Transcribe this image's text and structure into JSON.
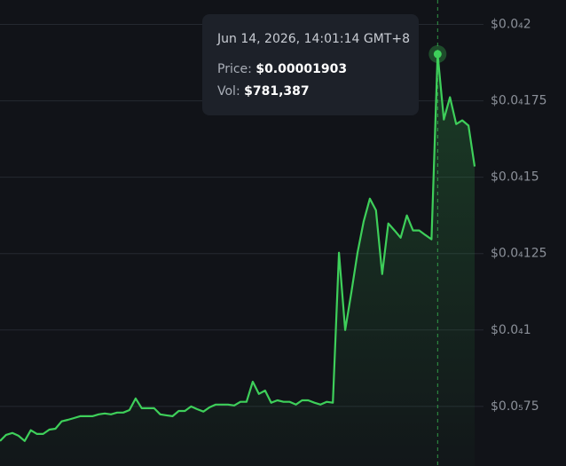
{
  "chart_data": {
    "type": "area-line",
    "values": [
      6.37e-06,
      6.57e-06,
      6.63e-06,
      6.54e-06,
      6.37e-06,
      6.72e-06,
      6.6e-06,
      6.6e-06,
      6.74e-06,
      6.77e-06,
      7.01e-06,
      7.06e-06,
      7.12e-06,
      7.18e-06,
      7.18e-06,
      7.18e-06,
      7.24e-06,
      7.27e-06,
      7.24e-06,
      7.3e-06,
      7.3e-06,
      7.38e-06,
      7.76e-06,
      7.44e-06,
      7.44e-06,
      7.44e-06,
      7.24e-06,
      7.21e-06,
      7.18e-06,
      7.35e-06,
      7.35e-06,
      7.5e-06,
      7.41e-06,
      7.33e-06,
      7.47e-06,
      7.56e-06,
      7.56e-06,
      7.56e-06,
      7.53e-06,
      7.65e-06,
      7.65e-06,
      8.31e-06,
      7.91e-06,
      8.02e-06,
      7.62e-06,
      7.7e-06,
      7.65e-06,
      7.65e-06,
      7.56e-06,
      7.7e-06,
      7.7e-06,
      7.62e-06,
      7.56e-06,
      7.65e-06,
      7.62e-06,
      1.253e-05,
      1e-05,
      1.122e-05,
      1.253e-05,
      1.355e-05,
      1.43e-05,
      1.392e-05,
      1.183e-05,
      1.349e-05,
      1.326e-05,
      1.302e-05,
      1.375e-05,
      1.326e-05,
      1.326e-05,
      1.311e-05,
      1.297e-05,
      1.903e-05,
      1.689e-05,
      1.762e-05,
      1.674e-05,
      1.686e-05,
      1.669e-05,
      1.535e-05
    ],
    "color": "#3ecf5a",
    "ylim": [
      5.55e-06,
      2.08e-05
    ],
    "yticks": [
      {
        "value": 2e-05,
        "label": "$0.0₄2"
      },
      {
        "value": 1.75e-05,
        "label": "$0.0₄175"
      },
      {
        "value": 1.5e-05,
        "label": "$0.0₄15"
      },
      {
        "value": 1.25e-05,
        "label": "$0.0₄125"
      },
      {
        "value": 1e-05,
        "label": "$0.0₄1"
      },
      {
        "value": 7.5e-06,
        "label": "$0.0₅75"
      }
    ],
    "grid": true,
    "tooltip": {
      "title": "Jun 14, 2026, 14:01:14 GMT+8",
      "price": 1.903e-05,
      "rows": [
        {
          "label": "Price:",
          "value_label": "$0.00001903"
        },
        {
          "label": "Vol:",
          "value_label": "$781,387"
        }
      ]
    }
  }
}
